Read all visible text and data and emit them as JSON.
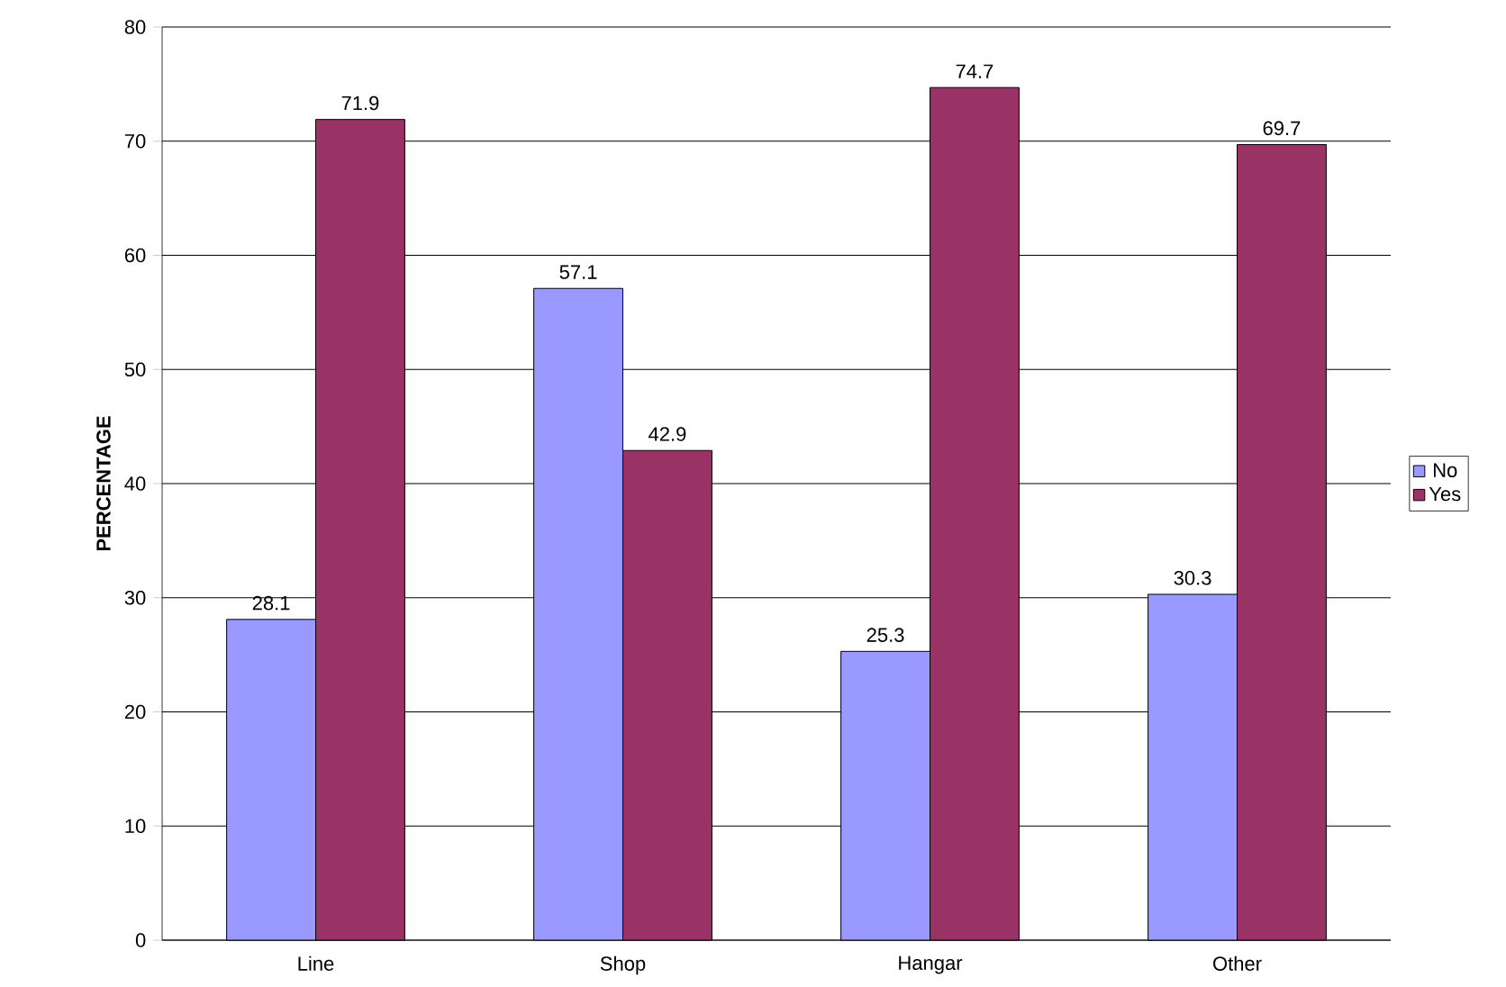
{
  "chart_data": {
    "type": "bar",
    "ylabel": "PERCENTAGE",
    "categories": [
      "Line",
      "Shop",
      "Hangar",
      "Other"
    ],
    "series": [
      {
        "name": "No",
        "color": "#9999ff",
        "values": [
          28.1,
          57.1,
          25.3,
          30.3
        ]
      },
      {
        "name": "Yes",
        "color": "#993366",
        "values": [
          71.9,
          42.9,
          74.7,
          69.7
        ]
      }
    ],
    "ylim": [
      0,
      80
    ],
    "yticks": [
      0,
      10,
      20,
      30,
      40,
      50,
      60,
      70,
      80
    ],
    "grid": "y",
    "legend": "right",
    "data_labels": true
  }
}
